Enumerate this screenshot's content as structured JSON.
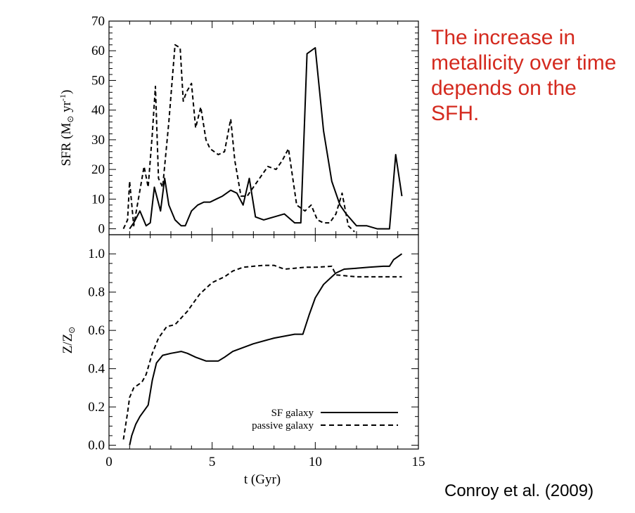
{
  "annotation": {
    "text": "The increase in metallicity over time depends on the SFH.",
    "color": "#d42a1f"
  },
  "citation": "Conroy et al. (2009)",
  "chart_data": [
    {
      "type": "line",
      "ylabel": "SFR (M⊙ yr⁻¹)",
      "xlim": [
        0,
        15
      ],
      "ylim": [
        -2,
        70
      ],
      "yticks": [
        0,
        10,
        20,
        30,
        40,
        50,
        60,
        70
      ],
      "series": [
        {
          "name": "SF galaxy",
          "style": "solid",
          "x": [
            1.0,
            1.2,
            1.5,
            1.8,
            2.0,
            2.2,
            2.5,
            2.7,
            2.9,
            3.2,
            3.5,
            3.7,
            4.0,
            4.3,
            4.6,
            4.9,
            5.2,
            5.5,
            5.9,
            6.2,
            6.5,
            6.8,
            7.1,
            7.5,
            8.0,
            8.5,
            9.0,
            9.3,
            9.6,
            10.0,
            10.4,
            10.8,
            11.2,
            11.5,
            12.0,
            12.5,
            13.0,
            13.6,
            13.9,
            14.2
          ],
          "y": [
            0,
            2,
            6,
            1,
            2,
            14,
            6,
            17,
            8,
            3,
            1,
            1,
            6,
            8,
            9,
            9,
            10,
            11,
            13,
            12,
            8,
            17,
            4,
            3,
            4,
            5,
            2,
            2,
            59,
            61,
            33,
            16,
            8,
            5,
            1,
            1,
            0,
            0,
            25,
            11
          ]
        },
        {
          "name": "passive galaxy",
          "style": "dashed",
          "x": [
            0.7,
            0.9,
            1.0,
            1.2,
            1.5,
            1.7,
            1.9,
            2.1,
            2.25,
            2.4,
            2.6,
            2.9,
            3.2,
            3.45,
            3.6,
            3.75,
            4.0,
            4.2,
            4.45,
            4.7,
            4.9,
            5.3,
            5.6,
            5.9,
            6.1,
            6.4,
            6.7,
            7.0,
            7.3,
            7.7,
            8.1,
            8.4,
            8.7,
            9.1,
            9.5,
            9.8,
            10.1,
            10.4,
            10.7,
            11.0,
            11.3,
            11.6,
            11.9
          ],
          "y": [
            0,
            3,
            16,
            1,
            13,
            21,
            14,
            32,
            48,
            17,
            14,
            36,
            62,
            61,
            43,
            46,
            49,
            34,
            41,
            30,
            27,
            25,
            26,
            37,
            23,
            11,
            11,
            14,
            17,
            21,
            20,
            23,
            27,
            8,
            6,
            8,
            3,
            2,
            2,
            5,
            12,
            1,
            -1
          ]
        }
      ]
    },
    {
      "type": "line",
      "xlabel": "t (Gyr)",
      "ylabel": "Z/Z⊙",
      "xlim": [
        0,
        15
      ],
      "ylim": [
        -0.02,
        1.1
      ],
      "xticks": [
        0,
        5,
        10,
        15
      ],
      "yticks": [
        0.0,
        0.2,
        0.4,
        0.6,
        0.8,
        1.0
      ],
      "legend": "bottom-right",
      "series": [
        {
          "name": "SF galaxy",
          "style": "solid",
          "x": [
            1.0,
            1.1,
            1.3,
            1.5,
            1.9,
            2.1,
            2.3,
            2.6,
            3.0,
            3.5,
            3.8,
            4.2,
            4.7,
            5.3,
            5.6,
            6.0,
            7.0,
            8.0,
            9.0,
            9.4,
            9.7,
            10.0,
            10.4,
            10.8,
            11.0,
            11.4,
            12.0,
            12.6,
            13.3,
            13.6,
            13.8,
            14.0,
            14.2
          ],
          "y": [
            0.0,
            0.05,
            0.11,
            0.15,
            0.21,
            0.34,
            0.43,
            0.47,
            0.48,
            0.49,
            0.48,
            0.46,
            0.44,
            0.44,
            0.46,
            0.49,
            0.53,
            0.56,
            0.58,
            0.58,
            0.68,
            0.77,
            0.84,
            0.88,
            0.9,
            0.92,
            0.925,
            0.93,
            0.935,
            0.935,
            0.97,
            0.985,
            1.0
          ]
        },
        {
          "name": "passive galaxy",
          "style": "dashed",
          "x": [
            0.7,
            0.9,
            1.0,
            1.2,
            1.6,
            1.8,
            2.1,
            2.4,
            2.8,
            3.2,
            3.8,
            4.4,
            5.0,
            5.6,
            6.0,
            6.5,
            7.0,
            7.5,
            8.0,
            8.5,
            9.0,
            9.5,
            10.0,
            10.8,
            11.0,
            12.0,
            13.0,
            14.2
          ],
          "y": [
            0.03,
            0.17,
            0.25,
            0.3,
            0.33,
            0.37,
            0.48,
            0.56,
            0.62,
            0.63,
            0.7,
            0.79,
            0.85,
            0.88,
            0.91,
            0.93,
            0.935,
            0.94,
            0.94,
            0.92,
            0.925,
            0.93,
            0.93,
            0.935,
            0.89,
            0.88,
            0.88,
            0.88
          ]
        }
      ]
    }
  ]
}
